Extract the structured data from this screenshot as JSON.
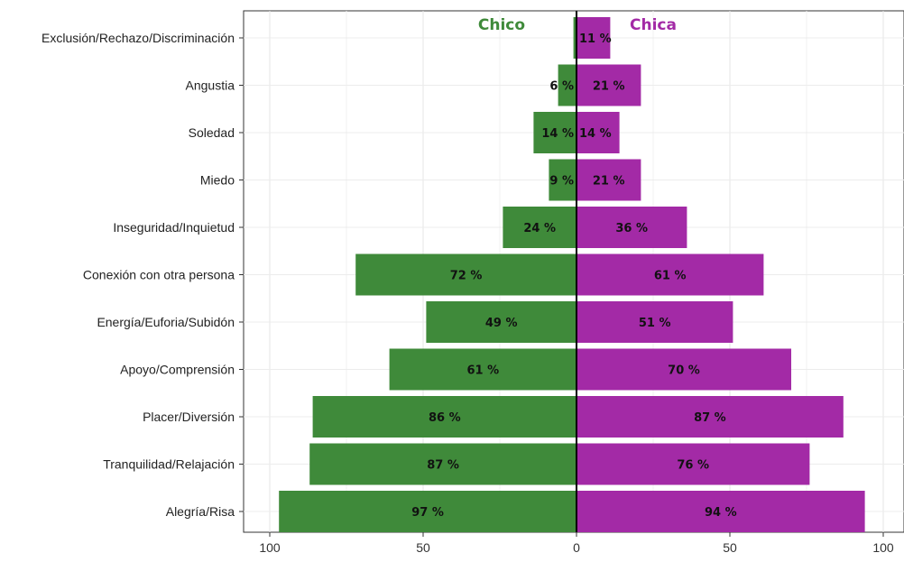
{
  "chart_data": {
    "type": "bar",
    "orientation": "horizontal-diverging",
    "categories": [
      "Exclusión/Rechazo/Discriminación",
      "Angustia",
      "Soledad",
      "Miedo",
      "Inseguridad/Inquietud",
      "Conexión con otra persona",
      "Energía/Euforia/Subidón",
      "Apoyo/Comprensión",
      "Placer/Diversión",
      "Tranquilidad/Relajación",
      "Alegría/Risa"
    ],
    "series": [
      {
        "name": "Chico",
        "side": "left",
        "color": "#3f8a3a",
        "values": [
          1,
          6,
          14,
          9,
          24,
          72,
          49,
          61,
          86,
          87,
          97
        ],
        "labels": [
          "",
          "6 %",
          "14 %",
          "9 %",
          "24 %",
          "72 %",
          "49 %",
          "61 %",
          "86 %",
          "87 %",
          "97 %"
        ]
      },
      {
        "name": "Chica",
        "side": "right",
        "color": "#a32aa6",
        "values": [
          11,
          21,
          14,
          21,
          36,
          61,
          51,
          70,
          87,
          76,
          94
        ],
        "labels": [
          "11 %",
          "21 %",
          "14 %",
          "21 %",
          "36 %",
          "61 %",
          "51 %",
          "70 %",
          "87 %",
          "76 %",
          "94 %"
        ]
      }
    ],
    "x_ticks": [
      "100",
      "50",
      "0",
      "50",
      "100"
    ],
    "xlim": [
      -100,
      100
    ],
    "title": "",
    "xlabel": "",
    "ylabel": "",
    "grid": true,
    "legend_placement": "top-center"
  }
}
